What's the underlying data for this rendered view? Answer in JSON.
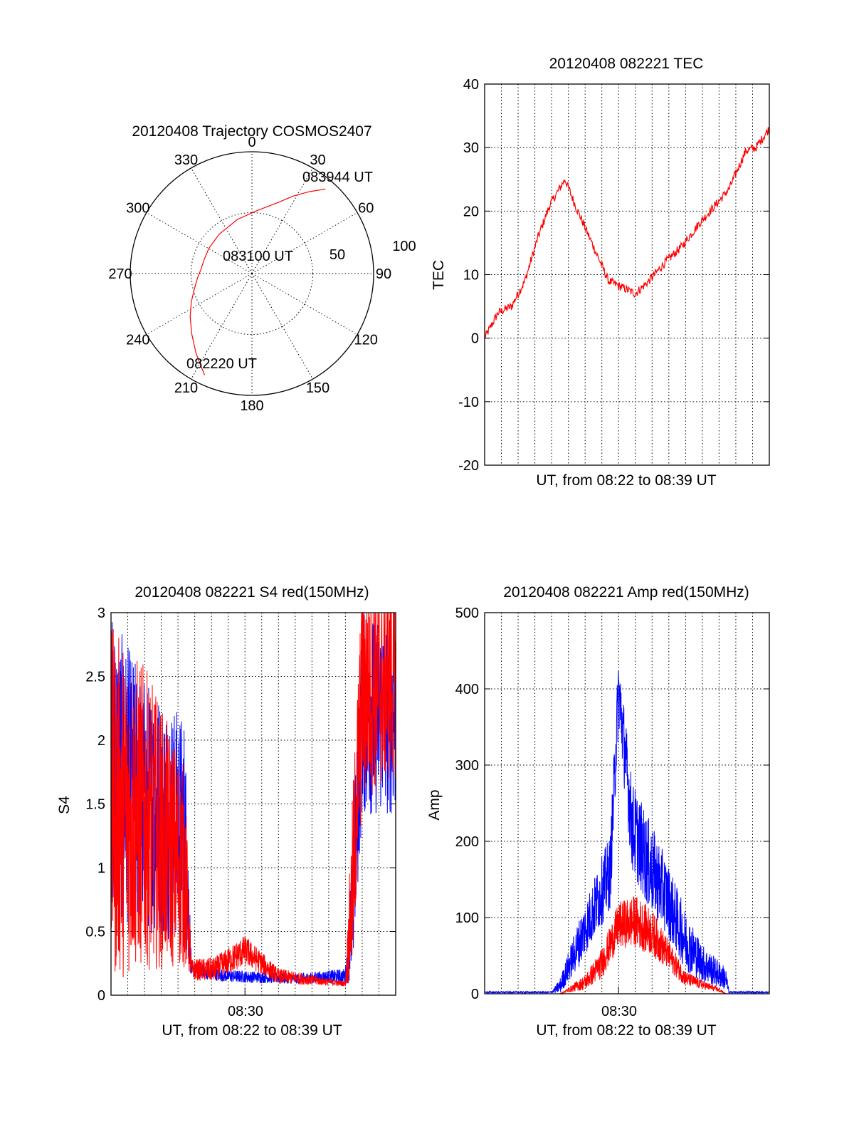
{
  "colors": {
    "red": "#ff0000",
    "blue": "#0000ff",
    "axis": "#000000"
  },
  "chart_data": [
    {
      "type": "polar",
      "title": "20120408 Trajectory COSMOS2407",
      "angle_labels": [
        "0",
        "30",
        "60",
        "90",
        "120",
        "150",
        "180",
        "210",
        "240",
        "270",
        "300",
        "330"
      ],
      "radius_labels": [
        "50",
        "100"
      ],
      "radius_max": 100,
      "grid": true,
      "annotations": [
        "083944 UT",
        "083100 UT",
        "082220 UT"
      ],
      "series": [
        {
          "color": "red",
          "azimuth": [
            205,
            215,
            225,
            235,
            245,
            255,
            265,
            275,
            285,
            300,
            320,
            345,
            5,
            20,
            28,
            35,
            41
          ],
          "radius": [
            92,
            80,
            70,
            62,
            55,
            49,
            45,
            42,
            41,
            41,
            42,
            46,
            52,
            62,
            72,
            82,
            92
          ]
        }
      ]
    },
    {
      "type": "line",
      "title": "20120408 082221 TEC",
      "ylabel": "TEC",
      "xlabel": "UT, from 08:22 to 08:39 UT",
      "ylim": [
        -20,
        40
      ],
      "yticks": [
        "-20",
        "-10",
        "0",
        "10",
        "20",
        "30",
        "40"
      ],
      "xlim": [
        "08:22",
        "08:39"
      ],
      "grid": true,
      "series": [
        {
          "color": "red",
          "x": [
            "08:22:00",
            "08:22:48",
            "08:23:36",
            "08:24:24",
            "08:25:12",
            "08:25:54",
            "08:26:48",
            "08:27:24",
            "08:28:24",
            "08:29:24",
            "08:30:12",
            "08:31:00",
            "08:31:48",
            "08:32:48",
            "08:33:48",
            "08:34:48",
            "08:35:48",
            "08:36:36",
            "08:37:36",
            "08:38:12",
            "08:39:00"
          ],
          "values": [
            0,
            4,
            5,
            9,
            16,
            21,
            25,
            21,
            15,
            9,
            8,
            7,
            9,
            12,
            14.5,
            18,
            21,
            23.5,
            29.5,
            30,
            33
          ]
        }
      ]
    },
    {
      "type": "line",
      "title": "20120408 082221 S4 red(150MHz)",
      "ylabel": "S4",
      "xlabel": "UT, from 08:22 to 08:39 UT",
      "xtick_label": "08:30",
      "ylim": [
        0,
        3
      ],
      "yticks": [
        "0",
        "0.5",
        "1",
        "1.5",
        "2",
        "2.5",
        "3"
      ],
      "xlim": [
        "08:22",
        "08:39"
      ],
      "grid": true,
      "series": [
        {
          "color": "blue",
          "x": [
            "08:22:00",
            "08:24:00",
            "08:26:24",
            "08:26:48",
            "08:29:00",
            "08:33:00",
            "08:36:00",
            "08:36:24",
            "08:37:00",
            "08:39:00"
          ],
          "values": [
            1.8,
            1.5,
            1.3,
            0.2,
            0.15,
            0.13,
            0.15,
            0.6,
            2.2,
            2.2
          ],
          "spread": [
            1.2,
            1.0,
            0.9,
            0.06,
            0.05,
            0.04,
            0.06,
            0.5,
            0.8,
            0.8
          ]
        },
        {
          "color": "red",
          "x": [
            "08:22:00",
            "08:24:00",
            "08:26:24",
            "08:26:48",
            "08:28:12",
            "08:30:00",
            "08:32:00",
            "08:34:00",
            "08:36:00",
            "08:36:24",
            "08:37:00",
            "08:39:00"
          ],
          "values": [
            1.5,
            1.4,
            1.0,
            0.2,
            0.2,
            0.35,
            0.15,
            0.12,
            0.09,
            0.8,
            2.4,
            2.5
          ],
          "spread": [
            1.4,
            1.2,
            0.8,
            0.08,
            0.1,
            0.12,
            0.06,
            0.04,
            0.02,
            0.7,
            0.9,
            0.8
          ]
        }
      ]
    },
    {
      "type": "line",
      "title": "20120408 082221 Amp red(150MHz)",
      "ylabel": "Amp",
      "xlabel": "UT, from 08:22 to 08:39 UT",
      "xtick_label": "08:30",
      "ylim": [
        0,
        500
      ],
      "yticks": [
        "0",
        "100",
        "200",
        "300",
        "400",
        "500"
      ],
      "xlim": [
        "08:22",
        "08:39"
      ],
      "grid": true,
      "series": [
        {
          "color": "blue",
          "x": [
            "08:22:00",
            "08:26:00",
            "08:26:30",
            "08:27:30",
            "08:28:30",
            "08:29:30",
            "08:30:00",
            "08:30:48",
            "08:31:48",
            "08:32:48",
            "08:34:00",
            "08:35:00",
            "08:36:24",
            "08:36:36",
            "08:39:00"
          ],
          "values": [
            2,
            2,
            10,
            60,
            110,
            160,
            400,
            220,
            170,
            130,
            70,
            40,
            20,
            2,
            2
          ],
          "spread": [
            1,
            1,
            10,
            30,
            40,
            50,
            50,
            60,
            60,
            50,
            40,
            25,
            15,
            1,
            1
          ]
        },
        {
          "color": "red",
          "x": [
            "08:22:00",
            "08:26:30",
            "08:28:00",
            "08:29:00",
            "08:30:00",
            "08:31:00",
            "08:32:00",
            "08:33:00",
            "08:34:00",
            "08:35:00",
            "08:36:00",
            "08:36:24",
            "08:39:00"
          ],
          "values": [
            0,
            0,
            15,
            40,
            90,
            95,
            80,
            50,
            20,
            12,
            5,
            0,
            0
          ],
          "spread": [
            0,
            0,
            10,
            20,
            30,
            35,
            30,
            20,
            10,
            6,
            3,
            0,
            0
          ]
        }
      ]
    }
  ]
}
